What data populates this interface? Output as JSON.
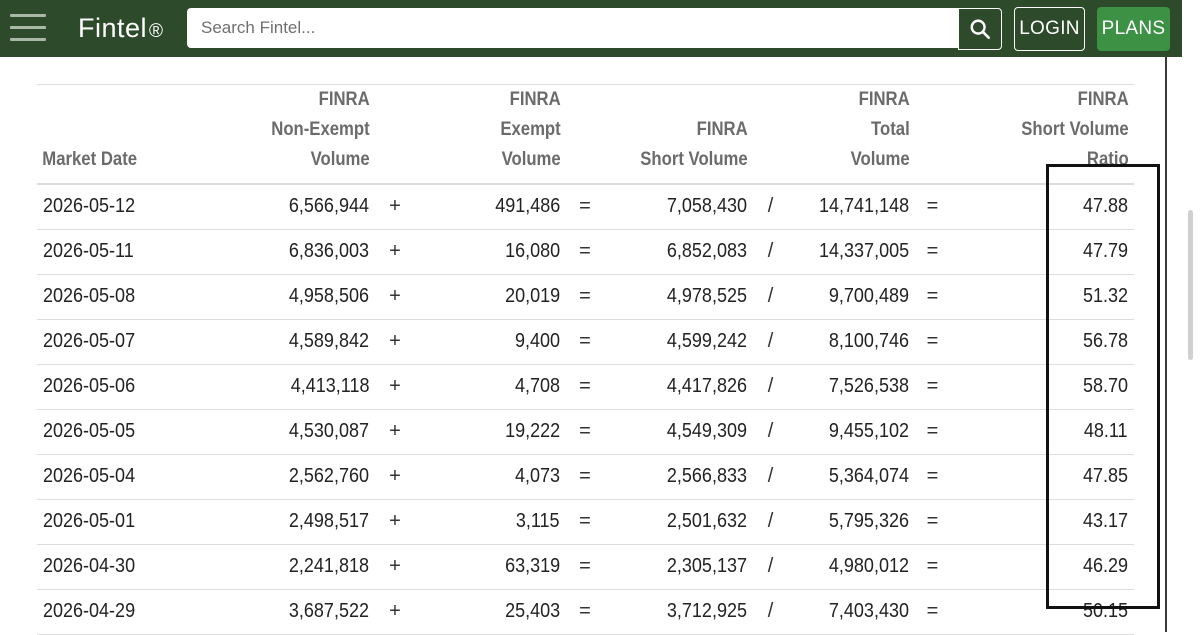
{
  "header": {
    "logo": "Fintel",
    "logo_mark": "®",
    "search_placeholder": "Search Fintel...",
    "login_label": "LOGIN",
    "plans_label": "PLANS"
  },
  "table": {
    "headers": {
      "date": [
        "",
        "Market Date"
      ],
      "non_exempt": [
        "FINRA",
        "Non-Exempt Volume"
      ],
      "exempt": [
        "FINRA",
        "Exempt Volume"
      ],
      "short": [
        "FINRA",
        "Short Volume"
      ],
      "total": [
        "FINRA",
        "Total Volume"
      ],
      "ratio": [
        "FINRA",
        "Short Volume Ratio"
      ]
    },
    "operators": [
      "+",
      "=",
      "/",
      "="
    ],
    "rows": [
      {
        "date": "2026-05-12",
        "non_exempt": "6,566,944",
        "exempt": "491,486",
        "short": "7,058,430",
        "total": "14,741,148",
        "ratio": "47.88"
      },
      {
        "date": "2026-05-11",
        "non_exempt": "6,836,003",
        "exempt": "16,080",
        "short": "6,852,083",
        "total": "14,337,005",
        "ratio": "47.79"
      },
      {
        "date": "2026-05-08",
        "non_exempt": "4,958,506",
        "exempt": "20,019",
        "short": "4,978,525",
        "total": "9,700,489",
        "ratio": "51.32"
      },
      {
        "date": "2026-05-07",
        "non_exempt": "4,589,842",
        "exempt": "9,400",
        "short": "4,599,242",
        "total": "8,100,746",
        "ratio": "56.78"
      },
      {
        "date": "2026-05-06",
        "non_exempt": "4,413,118",
        "exempt": "4,708",
        "short": "4,417,826",
        "total": "7,526,538",
        "ratio": "58.70"
      },
      {
        "date": "2026-05-05",
        "non_exempt": "4,530,087",
        "exempt": "19,222",
        "short": "4,549,309",
        "total": "9,455,102",
        "ratio": "48.11"
      },
      {
        "date": "2026-05-04",
        "non_exempt": "2,562,760",
        "exempt": "4,073",
        "short": "2,566,833",
        "total": "5,364,074",
        "ratio": "47.85"
      },
      {
        "date": "2026-05-01",
        "non_exempt": "2,498,517",
        "exempt": "3,115",
        "short": "2,501,632",
        "total": "5,795,326",
        "ratio": "43.17"
      },
      {
        "date": "2026-04-30",
        "non_exempt": "2,241,818",
        "exempt": "63,319",
        "short": "2,305,137",
        "total": "4,980,012",
        "ratio": "46.29"
      },
      {
        "date": "2026-04-29",
        "non_exempt": "3,687,522",
        "exempt": "25,403",
        "short": "3,712,925",
        "total": "7,403,430",
        "ratio": "50.15"
      }
    ]
  },
  "colors": {
    "header_bg": "#2d4a2b",
    "plans_bg": "#3d9145",
    "header_text": "#6b6b6b"
  },
  "icons": [
    "menu-icon",
    "search-icon"
  ]
}
